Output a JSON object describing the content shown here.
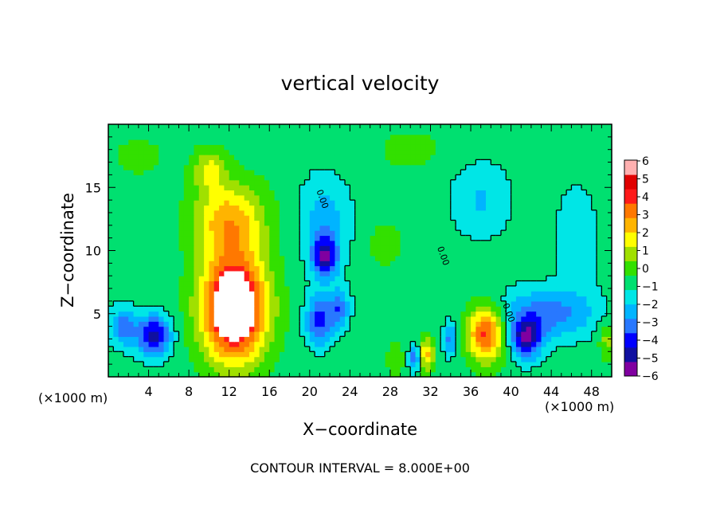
{
  "chart_data": {
    "type": "heatmap",
    "title": "vertical velocity",
    "xlabel": "X−coordinate",
    "ylabel": "Z−coordinate",
    "x_scale_note_left": "(×1000 m)",
    "x_scale_note_right": "(×1000 m)",
    "xlim": [
      0,
      50
    ],
    "ylim": [
      0,
      20
    ],
    "xticks": [
      4,
      8,
      12,
      16,
      20,
      24,
      28,
      32,
      36,
      40,
      44,
      48
    ],
    "yticks": [
      5,
      10,
      15
    ],
    "colorbar": {
      "min": -6,
      "max": 6,
      "labels": [
        "6",
        "5",
        "4",
        "3",
        "2",
        "1",
        "0",
        "−1",
        "−2",
        "−3",
        "−4",
        "−5",
        "−6"
      ]
    },
    "footer": "CONTOUR INTERVAL = 8.000E+00",
    "contour_label": "0.00",
    "features": [
      {
        "x": 12.5,
        "z": 5.5,
        "sx": 3.2,
        "sz": 4.2,
        "w": 9
      },
      {
        "x": 12.0,
        "z": 12.5,
        "sx": 3.5,
        "sz": 3.0,
        "w": 4
      },
      {
        "x": 10.0,
        "z": 16.5,
        "sx": 1.6,
        "sz": 1.6,
        "w": 2.5
      },
      {
        "x": 4.5,
        "z": 3.3,
        "sx": 1.7,
        "sz": 1.6,
        "w": -5
      },
      {
        "x": 21.0,
        "z": 4.5,
        "sx": 1.4,
        "sz": 2.0,
        "w": -4
      },
      {
        "x": 21.5,
        "z": 9.5,
        "sx": 1.3,
        "sz": 1.6,
        "w": -5
      },
      {
        "x": 21.5,
        "z": 12.5,
        "sx": 2.5,
        "sz": 3.5,
        "w": -2
      },
      {
        "x": 23.0,
        "z": 5.5,
        "sx": 1.0,
        "sz": 1.5,
        "w": -3
      },
      {
        "x": 27.5,
        "z": 10.5,
        "sx": 1.5,
        "sz": 1.5,
        "w": 1.5
      },
      {
        "x": 28.5,
        "z": 1.5,
        "sx": 0.8,
        "sz": 1.4,
        "w": 1.5
      },
      {
        "x": 30.5,
        "z": 1.5,
        "sx": 0.6,
        "sz": 1.0,
        "w": -4
      },
      {
        "x": 31.5,
        "z": 1.8,
        "sx": 0.8,
        "sz": 1.3,
        "w": 4
      },
      {
        "x": 34.0,
        "z": 3.0,
        "sx": 0.7,
        "sz": 1.3,
        "w": -3
      },
      {
        "x": 37.5,
        "z": 3.5,
        "sx": 1.8,
        "sz": 2.2,
        "w": 6
      },
      {
        "x": 41.5,
        "z": 3.0,
        "sx": 1.5,
        "sz": 1.6,
        "w": -5
      },
      {
        "x": 43.5,
        "z": 5.0,
        "sx": 5.0,
        "sz": 2.0,
        "w": -3
      },
      {
        "x": 37.0,
        "z": 14.0,
        "sx": 3.0,
        "sz": 3.0,
        "w": -1.6
      },
      {
        "x": 46.5,
        "z": 11.0,
        "sx": 2.0,
        "sz": 4.0,
        "w": -1.5
      },
      {
        "x": 1.5,
        "z": 4.0,
        "sx": 1.3,
        "sz": 1.6,
        "w": -3
      },
      {
        "x": 49.5,
        "z": 3.0,
        "sx": 0.8,
        "sz": 1.5,
        "w": 2
      },
      {
        "x": 3.0,
        "z": 17.5,
        "sx": 3.0,
        "sz": 2.0,
        "w": 0.8
      },
      {
        "x": 30.0,
        "z": 18.0,
        "sx": 4.0,
        "sz": 2.0,
        "w": 0.8
      }
    ]
  },
  "colors": {
    "palette": [
      "#8000a0",
      "#1010a0",
      "#0000ff",
      "#2878ff",
      "#00b4ff",
      "#00e6e6",
      "#00e070",
      "#33e000",
      "#a0e000",
      "#ffff00",
      "#ffb400",
      "#ff7800",
      "#ff1a1a",
      "#e00000",
      "#ffb0b0"
    ],
    "overflow": "#ffffff",
    "contour": "#000000"
  }
}
